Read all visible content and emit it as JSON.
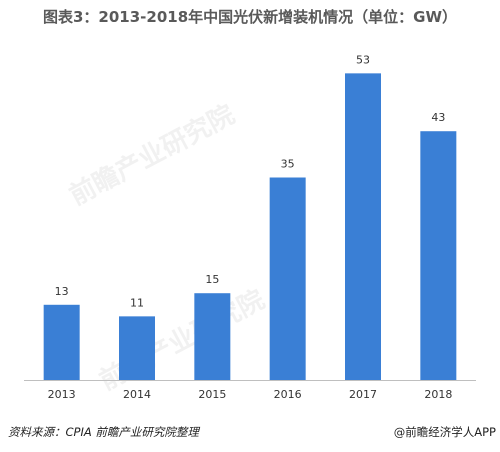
{
  "chart_data": {
    "type": "bar",
    "title": "图表3：2013-2018年中国光伏新增装机情况（单位：GW）",
    "categories": [
      "2013",
      "2014",
      "2015",
      "2016",
      "2017",
      "2018"
    ],
    "values": [
      13,
      11,
      15,
      35,
      53,
      43
    ],
    "xlabel": "",
    "ylabel": "",
    "ylim": [
      0,
      56
    ],
    "grid": false,
    "legend": "none",
    "bar_color": "#3a7fd5",
    "baseline_color": "#bfbfbf"
  },
  "source_text": "资料来源：CPIA  前瞻产业研究院整理",
  "brand_text": "@前瞻经济学人APP",
  "watermark_text": "前瞻产业研究院"
}
